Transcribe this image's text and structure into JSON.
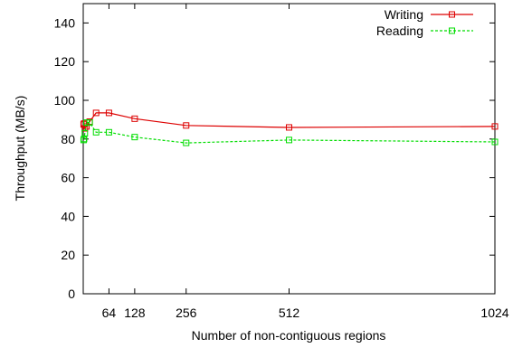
{
  "chart_data": {
    "type": "line",
    "title": "",
    "xlabel": "Number of non-contiguous regions",
    "ylabel": "Throughput (MB/s)",
    "xlim": [
      0,
      1024
    ],
    "ylim": [
      0,
      150
    ],
    "xticks": [
      64,
      128,
      256,
      512,
      1024
    ],
    "yticks": [
      0,
      20,
      40,
      60,
      80,
      100,
      120,
      140
    ],
    "grid": false,
    "legend_position": "top-right",
    "series": [
      {
        "name": "Writing",
        "color": "#dd0000",
        "line_style": "solid",
        "marker": "square",
        "x": [
          1,
          2,
          4,
          8,
          16,
          32,
          64,
          128,
          256,
          512,
          1024
        ],
        "y": [
          87.5,
          88,
          85.5,
          86.5,
          89,
          93.5,
          93.5,
          90.5,
          87,
          86,
          86.5
        ]
      },
      {
        "name": "Reading",
        "color": "#00dd00",
        "line_style": "dashed",
        "marker": "square",
        "x": [
          1,
          2,
          4,
          8,
          16,
          32,
          64,
          128,
          256,
          512,
          1024
        ],
        "y": [
          79.5,
          80,
          83,
          88.5,
          88.5,
          83.5,
          83.5,
          81,
          78,
          79.5,
          78.5
        ]
      }
    ]
  }
}
